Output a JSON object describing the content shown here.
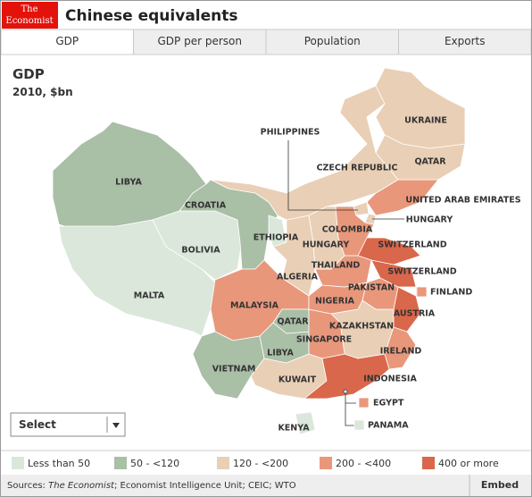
{
  "header": {
    "logo": [
      "The",
      "Economist"
    ],
    "title": "Chinese equivalents"
  },
  "tabs": [
    "GDP",
    "GDP per person",
    "Population",
    "Exports"
  ],
  "map": {
    "title": "GDP",
    "subtitle": "2010, $bn",
    "legend": [
      {
        "label": "Less than 50",
        "color": "#dbe7da"
      },
      {
        "label": "50 - <120",
        "color": "#a9bfa6"
      },
      {
        "label": "120 - <200",
        "color": "#e9cfb6"
      },
      {
        "label": "200 - <400",
        "color": "#e8977b"
      },
      {
        "label": "400 or more",
        "color": "#d9674b"
      }
    ],
    "regions": [
      {
        "label": "LIBYA",
        "color": "#a9bfa6"
      },
      {
        "label": "MALTA",
        "color": "#dbe7da"
      },
      {
        "label": "BOLIVIA",
        "color": "#dbe7da"
      },
      {
        "label": "CROATIA",
        "color": "#a9bfa6"
      },
      {
        "label": "ETHIOPIA",
        "color": "#dbe7da"
      },
      {
        "label": "MALAYSIA",
        "color": "#e8977b"
      },
      {
        "label": "VIETNAM",
        "color": "#a9bfa6"
      },
      {
        "label": "LIBYA",
        "color": "#a9bfa6"
      },
      {
        "label": "QATAR",
        "color": "#a9bfa6"
      },
      {
        "label": "KUWAIT",
        "color": "#e9cfb6"
      },
      {
        "label": "KENYA",
        "color": "#dbe7da"
      },
      {
        "label": "INDONESIA",
        "color": "#d9674b"
      },
      {
        "label": "EGYPT",
        "color": "#e8977b"
      },
      {
        "label": "PANAMA",
        "color": "#dbe7da"
      },
      {
        "label": "IRELAND",
        "color": "#e8977b"
      },
      {
        "label": "KAZAKHSTAN",
        "color": "#e9cfb6"
      },
      {
        "label": "SINGAPORE",
        "color": "#e8977b"
      },
      {
        "label": "NIGERIA",
        "color": "#e8977b"
      },
      {
        "label": "AUSTRIA",
        "color": "#d9674b"
      },
      {
        "label": "FINLAND",
        "color": "#e8977b"
      },
      {
        "label": "PAKISTAN",
        "color": "#e8977b"
      },
      {
        "label": "SWITZERLAND",
        "color": "#d9674b"
      },
      {
        "label": "SWITZERLAND",
        "color": "#d9674b"
      },
      {
        "label": "THAILAND",
        "color": "#e8977b"
      },
      {
        "label": "ALGERIA",
        "color": "#e9cfb6"
      },
      {
        "label": "HUNGARY",
        "color": "#e9cfb6"
      },
      {
        "label": "COLOMBIA",
        "color": "#e8977b"
      },
      {
        "label": "HUNGARY",
        "color": "#e9cfb6"
      },
      {
        "label": "PHILIPPINES",
        "color": "#e9cfb6"
      },
      {
        "label": "UNITED ARAB EMIRATES",
        "color": "#e8977b"
      },
      {
        "label": "CZECH REPUBLIC",
        "color": "#e9cfb6"
      },
      {
        "label": "QATAR",
        "color": "#e9cfb6"
      },
      {
        "label": "UKRAINE",
        "color": "#e9cfb6"
      }
    ]
  },
  "select": "Select",
  "footer": {
    "prefix": "Sources:",
    "italic": "The Economist",
    "rest": "; Economist Intelligence Unit; CEIC; WTO",
    "embed": "Embed"
  }
}
